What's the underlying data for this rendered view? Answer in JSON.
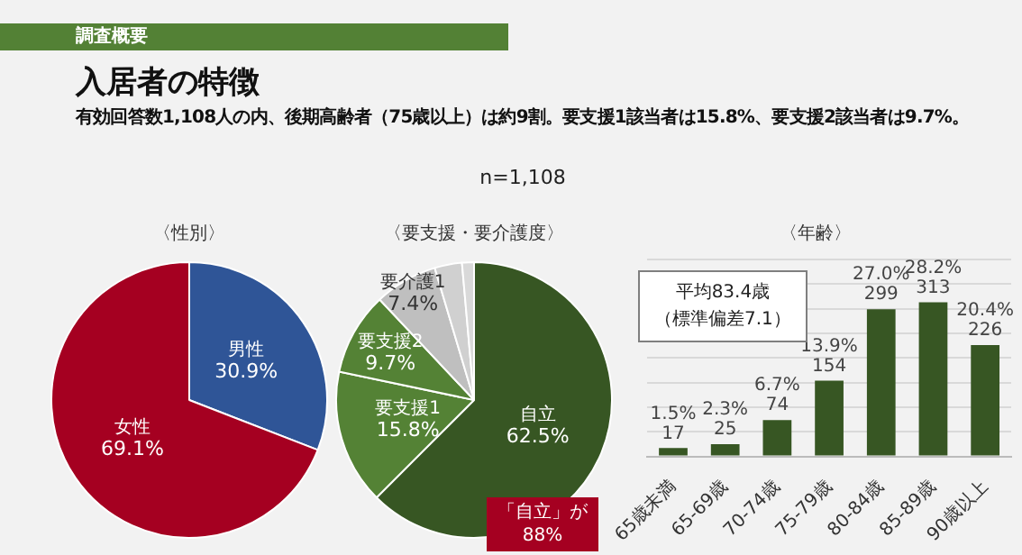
{
  "chart_data": [
    {
      "type": "other",
      "title": "入居者の特徴",
      "subtitle": "有効回答数1,108人の内、後期高齢者（75歳以上）は約9割。要支援1該当者は15.8%、要支援2該当者は9.7%。",
      "annotations": [
        "調査概要",
        "n=1,108"
      ]
    },
    {
      "type": "pie",
      "title": "〈性別〉",
      "categories": [
        "男性",
        "女性"
      ],
      "values": [
        30.9,
        69.1
      ],
      "value_labels": [
        "30.9%",
        "69.1%"
      ],
      "colors": [
        "#2f5597",
        "#a50021"
      ]
    },
    {
      "type": "pie",
      "title": "〈要支援・要介護度〉",
      "categories": [
        "自立",
        "要支援1",
        "要支援2",
        "要介護1",
        null,
        null
      ],
      "values": [
        62.5,
        15.8,
        9.7,
        7.4,
        3.2,
        1.4
      ],
      "value_labels": [
        "62.5%",
        "15.8%",
        "9.7%",
        "7.4%",
        null,
        null
      ],
      "colors": [
        "#375623",
        "#548235",
        "#548235",
        "#bfbfbf",
        "#d0d0d0",
        "#d9d9d9"
      ],
      "annotations": [
        "「自立」が\n88%"
      ]
    },
    {
      "type": "bar",
      "title": "〈年齢〉",
      "categories": [
        "65歳未満",
        "65-69歳",
        "70-74歳",
        "75-79歳",
        "80-84歳",
        "85-89歳",
        "90歳以上"
      ],
      "values": [
        17,
        25,
        74,
        154,
        299,
        313,
        226
      ],
      "value_labels": [
        "1.5%\n17",
        "2.3%\n25",
        "6.7%\n74",
        "13.9%\n154",
        "27.0%\n299",
        "28.2%\n313",
        "20.4%\n226"
      ],
      "color": "#375623",
      "ylim": [
        0,
        400
      ],
      "yticks": [
        {
          "value": 0,
          "label": null
        },
        {
          "value": 50,
          "label": null
        },
        {
          "value": 100,
          "label": null
        },
        {
          "value": 150,
          "label": null
        },
        {
          "value": 200,
          "label": null
        },
        {
          "value": 250,
          "label": null
        },
        {
          "value": 300,
          "label": null
        },
        {
          "value": 350,
          "label": null
        },
        {
          "value": 400,
          "label": null
        }
      ],
      "grid": "y",
      "tick_labels": "x",
      "annotations": [
        "平均83.4歳",
        "（標準偏差7.1）"
      ]
    }
  ]
}
